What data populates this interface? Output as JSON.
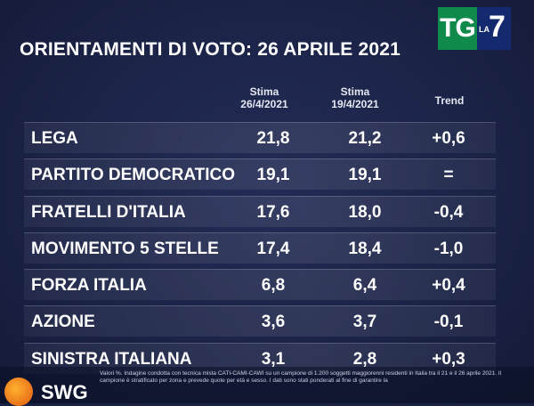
{
  "brand": {
    "logo_tg": "TG",
    "logo_la": "LA",
    "logo_seven": "7",
    "accent_green": "#0f8a4a",
    "accent_blue": "#142a6e"
  },
  "title": "ORIENTAMENTI DI VOTO: 26 APRILE 2021",
  "headers": {
    "col1": "Stima\n26/4/2021",
    "col2": "Stima\n19/4/2021",
    "col3": "Trend"
  },
  "table": [
    {
      "party": "LEGA",
      "current": "21,8",
      "previous": "21,2",
      "trend": "+0,6"
    },
    {
      "party": "PARTITO DEMOCRATICO",
      "current": "19,1",
      "previous": "19,1",
      "trend": "="
    },
    {
      "party": "FRATELLI D'ITALIA",
      "current": "17,6",
      "previous": "18,0",
      "trend": "-0,4"
    },
    {
      "party": "MOVIMENTO 5 STELLE",
      "current": "17,4",
      "previous": "18,4",
      "trend": "-1,0"
    },
    {
      "party": "FORZA ITALIA",
      "current": "6,8",
      "previous": "6,4",
      "trend": "+0,4"
    },
    {
      "party": "AZIONE",
      "current": "3,6",
      "previous": "3,7",
      "trend": "-0,1"
    },
    {
      "party": "SINISTRA ITALIANA",
      "current": "3,1",
      "previous": "2,8",
      "trend": "+0,3"
    }
  ],
  "footer": {
    "source_logo": "SWG",
    "note": "Valori %. Indagine condotta con tecnica mista CATI-CAMI-CAWI su un campione di 1.200 soggetti maggiorenni residenti in Italia tra il 21 e il 26 aprile 2021. Il campione è stratificato per zona e prevede quote per età e sesso. I dati sono stati ponderati al fine di garantire la"
  }
}
